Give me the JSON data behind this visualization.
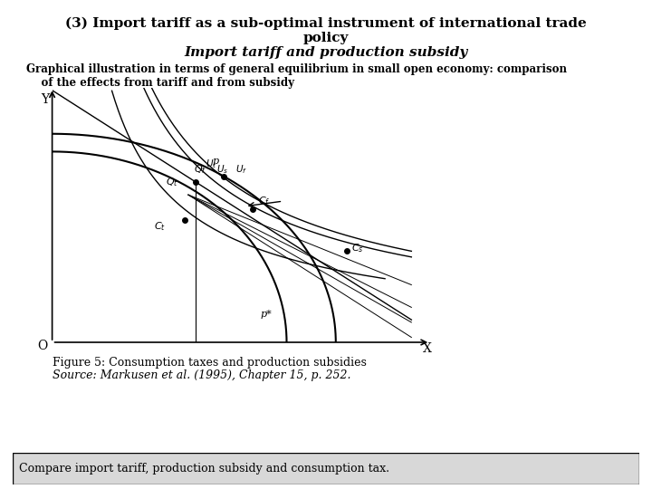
{
  "title_line1": "(3) Import tariff as a sub-optimal instrument of international trade",
  "title_line2": "policy",
  "title_line3": "Import tariff and production subsidy",
  "subtitle": "Graphical illustration in terms of general equilibrium in small open economy: comparison\n    of the effects from tariff and from subsidy",
  "figure_caption_line1": "Figure 5: Consumption taxes and production subsidies",
  "figure_caption_line2": "Source: Markusen et al. (1995), Chapter 15, p. 252.",
  "bottom_box_text": "Compare import tariff, production subsidy and consumption tax.",
  "bg_color": "#f0f0f0",
  "box_color": "#d0d0d0"
}
